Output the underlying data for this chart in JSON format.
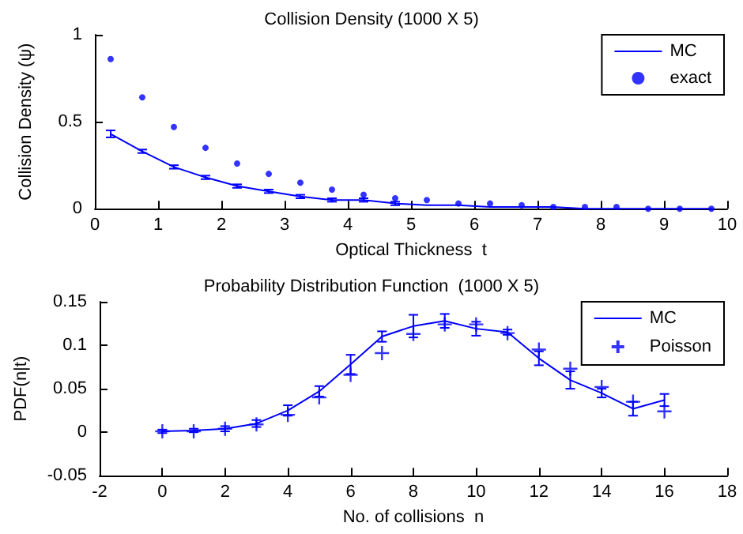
{
  "chart_data": [
    {
      "type": "line",
      "title": "Collision Density (1000 X 5)",
      "xlabel": "Optical Thickness  t",
      "ylabel": "Collision Density (ψ)",
      "x": [
        0.25,
        0.75,
        1.25,
        1.75,
        2.25,
        2.75,
        3.25,
        3.75,
        4.25,
        4.75,
        5.25,
        5.75,
        6.25,
        6.75,
        7.25,
        7.75,
        8.25,
        8.75,
        9.25,
        9.75
      ],
      "xlim": [
        0,
        10
      ],
      "xticks": [
        0,
        1,
        2,
        3,
        4,
        5,
        6,
        7,
        8,
        9,
        10
      ],
      "ylim": [
        0,
        1
      ],
      "yticks": [
        0,
        0.5,
        1
      ],
      "grid": false,
      "legend": "top right",
      "series": [
        {
          "name": "MC",
          "type": "line",
          "color": "#0000ff",
          "marker": "none",
          "values": [
            0.43,
            0.33,
            0.24,
            0.18,
            0.13,
            0.1,
            0.07,
            0.05,
            0.05,
            0.03,
            0.02,
            0.02,
            0.01,
            0.01,
            0.01,
            0,
            0,
            0,
            0,
            0
          ],
          "errors": [
            0.02,
            0.01,
            0.01,
            0.01,
            0.01,
            0.01,
            0.01,
            0.01,
            0.01,
            0.01,
            null,
            null,
            null,
            null,
            null,
            null,
            null,
            null,
            null,
            null
          ]
        },
        {
          "name": "exact",
          "type": "scatter",
          "color": "#0000ff",
          "marker": "circle",
          "values": [
            0.86,
            0.64,
            0.47,
            0.35,
            0.26,
            0.2,
            0.15,
            0.11,
            0.08,
            0.06,
            0.05,
            0.03,
            0.03,
            0.02,
            0.01,
            0.01,
            0.01,
            0,
            0,
            0
          ]
        }
      ]
    },
    {
      "type": "line",
      "title": "Probability Distribution Function  (1000 X 5)",
      "xlabel": "No. of collisions  n",
      "ylabel": "PDF(n|t)",
      "x": [
        0,
        1,
        2,
        3,
        4,
        5,
        6,
        7,
        8,
        9,
        10,
        11,
        12,
        13,
        14,
        15,
        16
      ],
      "xlim": [
        -2,
        18
      ],
      "xticks": [
        -2,
        0,
        2,
        4,
        6,
        8,
        10,
        12,
        14,
        16,
        18
      ],
      "ylim": [
        -0.05,
        0.15
      ],
      "yticks": [
        -0.05,
        0,
        0.05,
        0.1,
        0.15
      ],
      "grid": false,
      "legend": "top right",
      "series": [
        {
          "name": "MC",
          "type": "line",
          "color": "#0000ff",
          "marker": "none",
          "values": [
            0.001,
            0.002,
            0.004,
            0.01,
            0.025,
            0.047,
            0.078,
            0.11,
            0.122,
            0.128,
            0.119,
            0.115,
            0.085,
            0.06,
            0.045,
            0.027,
            0.037
          ],
          "errors": [
            0.002,
            0.002,
            0.003,
            0.004,
            0.006,
            0.006,
            0.011,
            0.006,
            0.013,
            0.008,
            0.008,
            0.003,
            0.008,
            0.01,
            0.005,
            0.008,
            0.007
          ]
        },
        {
          "name": "Poisson",
          "type": "scatter",
          "color": "#0000ff",
          "marker": "cross",
          "values": [
            0.001,
            0.001,
            0.004,
            0.009,
            0.02,
            0.04,
            0.066,
            0.091,
            0.113,
            0.124,
            0.124,
            0.114,
            0.095,
            0.073,
            0.052,
            0.035,
            0.024
          ]
        }
      ]
    }
  ]
}
